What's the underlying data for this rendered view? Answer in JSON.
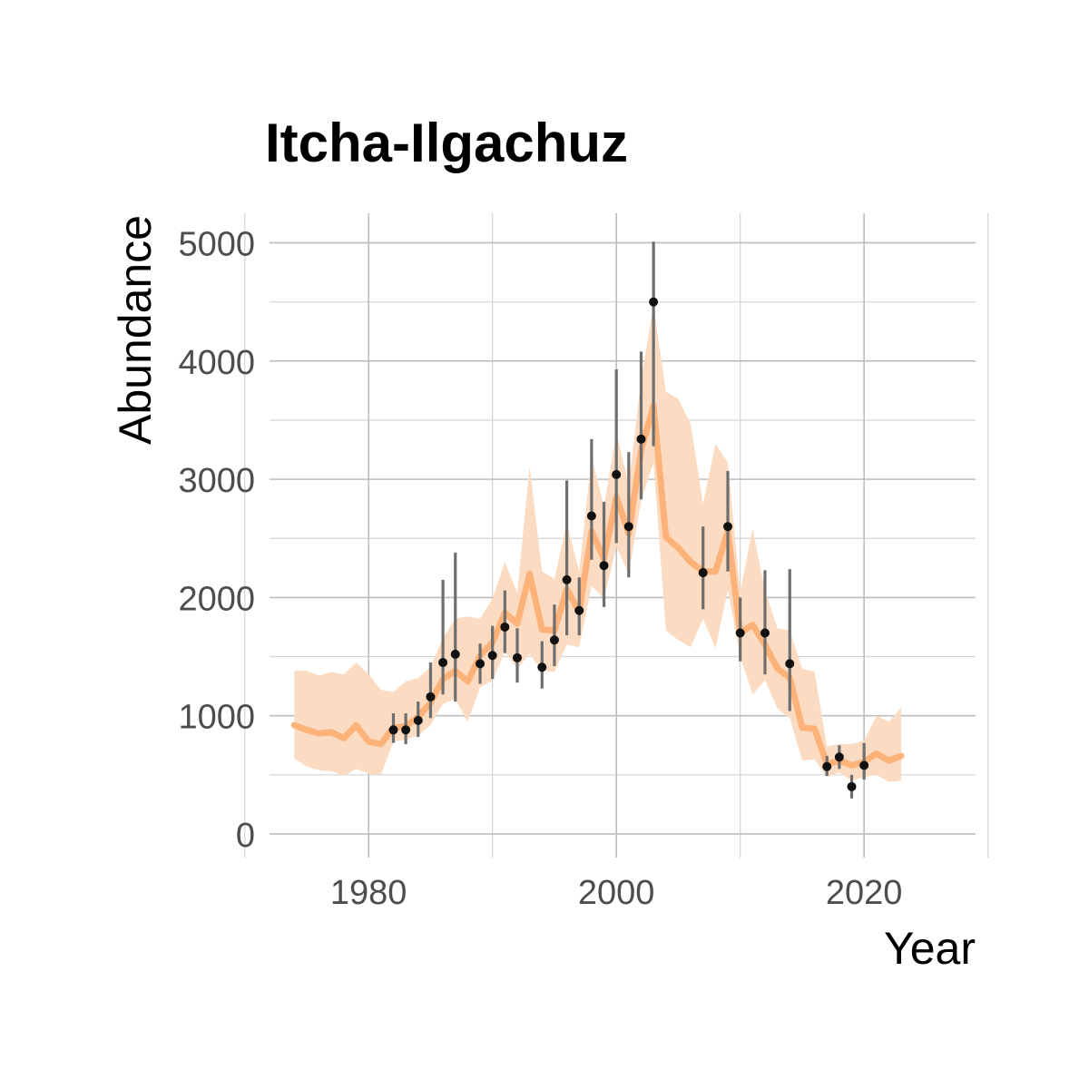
{
  "chart_data": {
    "type": "line",
    "title": "Itcha-Ilgachuz",
    "xlabel": "Year",
    "ylabel": "Abundance",
    "xlim": [
      1972,
      2029
    ],
    "ylim": [
      -200,
      5250
    ],
    "x_ticks": [
      1980,
      2000,
      2020
    ],
    "y_ticks": [
      0,
      1000,
      2000,
      3000,
      4000,
      5000
    ],
    "grid": true,
    "legend": "none",
    "colors": {
      "estimate_line": "#fdb27a",
      "estimate_ribbon": "#fbdcc2",
      "observation_point": "#111111",
      "observation_errorbar": "#6e6e6e"
    },
    "series": [
      {
        "type": "line_with_ribbon",
        "x": [
          1974,
          1975,
          1976,
          1977,
          1978,
          1979,
          1980,
          1981,
          1982,
          1983,
          1984,
          1985,
          1986,
          1987,
          1988,
          1989,
          1990,
          1991,
          1992,
          1993,
          1994,
          1995,
          1996,
          1997,
          1998,
          1999,
          2000,
          2001,
          2002,
          2003,
          2004,
          2005,
          2006,
          2007,
          2008,
          2009,
          2010,
          2011,
          2012,
          2013,
          2014,
          2015,
          2016,
          2017,
          2018,
          2019,
          2020,
          2021,
          2022,
          2023
        ],
        "y": [
          920,
          880,
          850,
          860,
          810,
          920,
          780,
          760,
          900,
          910,
          990,
          1110,
          1310,
          1380,
          1290,
          1510,
          1620,
          1870,
          1780,
          2200,
          1730,
          1720,
          2070,
          1880,
          2560,
          2330,
          2850,
          2540,
          3250,
          3620,
          2510,
          2420,
          2300,
          2220,
          2220,
          2560,
          1700,
          1770,
          1600,
          1400,
          1320,
          900,
          890,
          590,
          620,
          580,
          610,
          680,
          620,
          660
        ],
        "lower": [
          640,
          570,
          540,
          530,
          490,
          550,
          510,
          500,
          780,
          800,
          830,
          920,
          1100,
          1140,
          950,
          1240,
          1300,
          1540,
          1400,
          1520,
          1380,
          1370,
          1600,
          1580,
          2100,
          1990,
          2430,
          2200,
          2820,
          3140,
          1720,
          1640,
          1580,
          1820,
          1570,
          2060,
          1500,
          1180,
          1300,
          1060,
          980,
          620,
          630,
          480,
          520,
          450,
          480,
          500,
          440,
          450
        ],
        "upper": [
          1380,
          1380,
          1340,
          1370,
          1350,
          1450,
          1350,
          1220,
          1200,
          1290,
          1320,
          1410,
          1660,
          1820,
          1840,
          1820,
          1990,
          2300,
          2040,
          3110,
          2220,
          2160,
          2630,
          2220,
          3190,
          2770,
          3390,
          2960,
          3840,
          4480,
          3740,
          3680,
          3470,
          2790,
          3300,
          3140,
          2050,
          2580,
          2060,
          1740,
          1720,
          1400,
          1370,
          740,
          760,
          760,
          790,
          1000,
          950,
          1070
        ]
      },
      {
        "type": "points_with_errorbars",
        "x": [
          1982,
          1983,
          1984,
          1985,
          1986,
          1987,
          1989,
          1990,
          1991,
          1992,
          1994,
          1995,
          1996,
          1997,
          1998,
          1999,
          2000,
          2001,
          2002,
          2003,
          2007,
          2009,
          2010,
          2012,
          2014,
          2017,
          2018,
          2019,
          2020
        ],
        "y": [
          880,
          880,
          960,
          1160,
          1450,
          1520,
          1440,
          1510,
          1750,
          1490,
          1410,
          1640,
          2150,
          1890,
          2690,
          2270,
          3040,
          2600,
          3340,
          4500,
          2210,
          2600,
          1700,
          1700,
          1440,
          570,
          650,
          400,
          580
        ],
        "lower": [
          770,
          760,
          820,
          980,
          1180,
          1120,
          1270,
          1310,
          1530,
          1280,
          1230,
          1420,
          1680,
          1680,
          2320,
          1920,
          2460,
          2170,
          2830,
          3280,
          1900,
          2220,
          1460,
          1350,
          1040,
          490,
          550,
          300,
          460
        ],
        "upper": [
          1020,
          1020,
          1120,
          1450,
          2150,
          2380,
          1610,
          1760,
          2060,
          1740,
          1630,
          1940,
          2990,
          2170,
          3340,
          2810,
          3930,
          3230,
          4080,
          5010,
          2600,
          3070,
          2000,
          2230,
          2240,
          660,
          750,
          500,
          770
        ]
      }
    ]
  }
}
